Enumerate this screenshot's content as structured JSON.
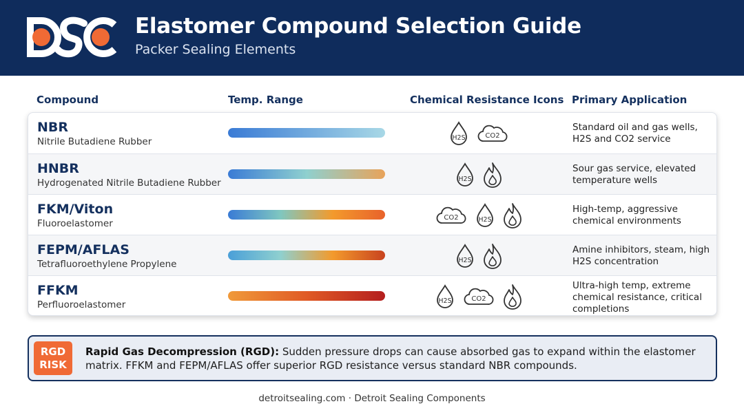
{
  "header": {
    "title": "Elastomer Compound Selection Guide",
    "subtitle": "Packer Sealing Elements",
    "logo_icon": "dsc-logo",
    "colors": {
      "background": "#0f2c5c",
      "accent": "#f06a35"
    }
  },
  "columns": {
    "compound": "Compound",
    "temp_range": "Temp. Range",
    "chem_icons": "Chemical Resistance Icons",
    "application": "Primary Application"
  },
  "icon_labels": {
    "h2s": "H2S",
    "co2": "CO2"
  },
  "compounds": [
    {
      "name": "NBR",
      "full_name": "Nitrile Butadiene Rubber",
      "temp_gradient": [
        "#3a7bd5",
        "#a8d8e6"
      ],
      "icons": [
        "h2s-drop-icon",
        "co2-cloud-icon"
      ],
      "application": "Standard oil and gas wells, H2S and CO2 service"
    },
    {
      "name": "HNBR",
      "full_name": "Hydrogenated Nitrile Butadiene Rubber",
      "temp_gradient": [
        "#3a7bd5",
        "#8fd0cf",
        "#e8a35a"
      ],
      "icons": [
        "h2s-drop-icon",
        "flame-icon"
      ],
      "application": "Sour gas service, elevated temperature wells"
    },
    {
      "name": "FKM/Viton",
      "full_name": "Fluoroelastomer",
      "temp_gradient": [
        "#3a7bd5",
        "#7fc7c0",
        "#f39a2c",
        "#e8622b"
      ],
      "icons": [
        "co2-cloud-icon",
        "h2s-drop-icon",
        "flame-icon"
      ],
      "application": "High-temp, aggressive chemical environments"
    },
    {
      "name": "FEPM/AFLAS",
      "full_name": "Tetrafluoroethylene Propylene",
      "temp_gradient": [
        "#4a9fd8",
        "#8fd0cf",
        "#f39a2c",
        "#c8431f"
      ],
      "icons": [
        "h2s-drop-icon",
        "flame-icon"
      ],
      "application": "Amine inhibitors, steam, high H2S concentration"
    },
    {
      "name": "FFKM",
      "full_name": "Perfluoroelastomer",
      "temp_gradient": [
        "#f09a3a",
        "#e05a25",
        "#b41e1e"
      ],
      "icons": [
        "h2s-drop-icon",
        "co2-cloud-icon",
        "flame-icon"
      ],
      "application": "Ultra-high temp, extreme chemical resistance, critical completions"
    }
  ],
  "rgd": {
    "badge_line1": "RGD",
    "badge_line2": "RISK",
    "title": "Rapid Gas Decompression (RGD):",
    "text": " Sudden pressure drops can cause absorbed gas to expand within the elastomer matrix. FFKM and FEPM/AFLAS offer superior RGD resistance versus standard NBR compounds."
  },
  "footer": "detroitsealing.com · Detroit Sealing Components"
}
